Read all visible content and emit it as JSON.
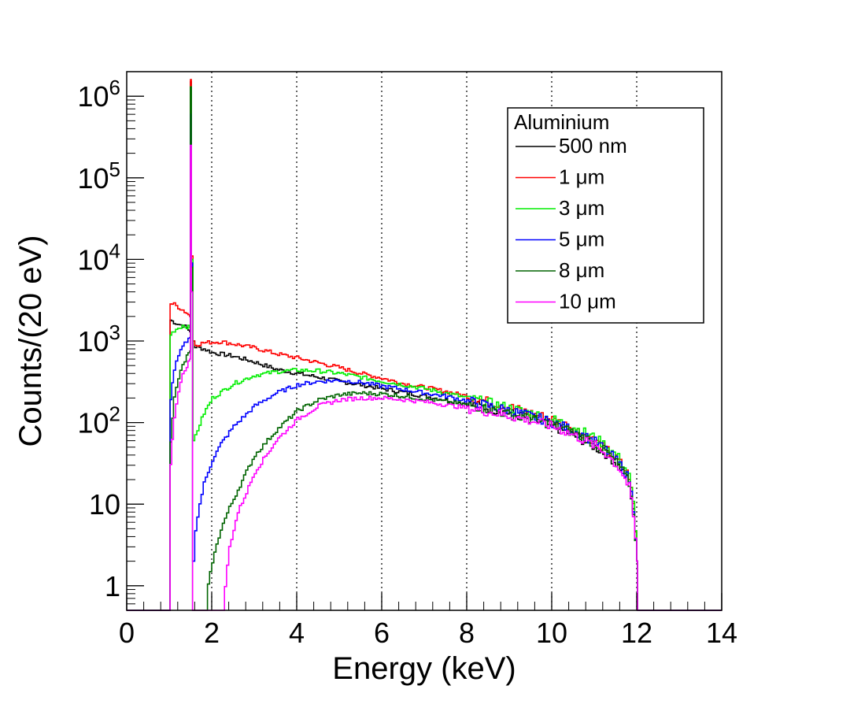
{
  "chart_data": {
    "type": "line",
    "title": "",
    "xlabel": "Energy (keV)",
    "ylabel": "Counts/(20 eV)",
    "yscale": "log",
    "xlim": [
      0,
      14
    ],
    "ylim": [
      0.5,
      2000000
    ],
    "x_ticks": [
      {
        "value": 0,
        "label": "0"
      },
      {
        "value": 2,
        "label": "2"
      },
      {
        "value": 4,
        "label": "4"
      },
      {
        "value": 6,
        "label": "6"
      },
      {
        "value": 8,
        "label": "8"
      },
      {
        "value": 10,
        "label": "10"
      },
      {
        "value": 12,
        "label": "12"
      },
      {
        "value": 14,
        "label": "14"
      }
    ],
    "y_ticks": [
      {
        "value": 1,
        "base": "1",
        "exp": ""
      },
      {
        "value": 10,
        "base": "10",
        "exp": ""
      },
      {
        "value": 100,
        "base": "10",
        "exp": "2"
      },
      {
        "value": 1000,
        "base": "10",
        "exp": "3"
      },
      {
        "value": 10000,
        "base": "10",
        "exp": "4"
      },
      {
        "value": 100000,
        "base": "10",
        "exp": "5"
      },
      {
        "value": 1000000,
        "base": "10",
        "exp": "6"
      }
    ],
    "grid_x": [
      2,
      4,
      6,
      8,
      10,
      12
    ],
    "legend": {
      "title": "Aluminium",
      "placement": "top-right"
    },
    "series": [
      {
        "name": "500 nm",
        "color": "#000000",
        "x": [
          1.0,
          1.02,
          1.1,
          1.2,
          1.3,
          1.4,
          1.48,
          1.5,
          1.52,
          1.56,
          1.6,
          1.8,
          2.0,
          2.5,
          3.0,
          3.5,
          4.0,
          4.5,
          5.0,
          5.5,
          6.0,
          6.5,
          7.0,
          7.5,
          8.0,
          8.5,
          9.0,
          9.5,
          10.0,
          10.5,
          11.0,
          11.3,
          11.6,
          11.8,
          11.9,
          12.0,
          12.02
        ],
        "y": [
          0.5,
          1800,
          1700,
          1600,
          1550,
          1450,
          1300,
          1500000,
          9000,
          1000,
          850,
          800,
          720,
          650,
          550,
          450,
          400,
          360,
          320,
          290,
          260,
          235,
          210,
          190,
          170,
          150,
          130,
          110,
          90,
          70,
          50,
          40,
          28,
          18,
          8,
          2,
          0.5
        ]
      },
      {
        "name": "1 μm",
        "color": "#ff0000",
        "x": [
          1.0,
          1.02,
          1.1,
          1.2,
          1.3,
          1.4,
          1.48,
          1.5,
          1.52,
          1.56,
          1.6,
          1.8,
          2.0,
          2.2,
          2.5,
          3.0,
          3.5,
          4.0,
          4.5,
          5.0,
          5.5,
          6.0,
          6.5,
          7.0,
          7.5,
          8.0,
          8.5,
          9.0,
          9.5,
          10.0,
          10.5,
          11.0,
          11.3,
          11.6,
          11.8,
          11.9,
          12.0,
          12.02
        ],
        "y": [
          0.5,
          2900,
          2800,
          2600,
          2400,
          2200,
          2000,
          1600000,
          11000,
          1000,
          900,
          950,
          970,
          980,
          920,
          820,
          700,
          620,
          540,
          470,
          400,
          350,
          300,
          270,
          240,
          210,
          180,
          155,
          130,
          110,
          85,
          60,
          45,
          32,
          22,
          10,
          2,
          0.5
        ]
      },
      {
        "name": "3 μm",
        "color": "#00ee00",
        "x": [
          1.0,
          1.02,
          1.1,
          1.2,
          1.3,
          1.4,
          1.48,
          1.5,
          1.52,
          1.56,
          1.6,
          1.8,
          2.0,
          2.5,
          3.0,
          3.5,
          4.0,
          4.5,
          5.0,
          5.5,
          6.0,
          6.5,
          7.0,
          7.5,
          8.0,
          8.5,
          9.0,
          9.5,
          10.0,
          10.5,
          11.0,
          11.3,
          11.6,
          11.8,
          11.9,
          12.0,
          12.02
        ],
        "y": [
          0.5,
          1200,
          1350,
          1450,
          1550,
          1500,
          1450,
          1300000,
          10000,
          60,
          70,
          130,
          200,
          300,
          380,
          420,
          440,
          430,
          400,
          360,
          320,
          290,
          260,
          230,
          200,
          175,
          150,
          130,
          110,
          88,
          65,
          50,
          35,
          22,
          10,
          2,
          0.5
        ]
      },
      {
        "name": "5 μm",
        "color": "#0000ff",
        "x": [
          1.0,
          1.02,
          1.1,
          1.2,
          1.3,
          1.4,
          1.48,
          1.5,
          1.52,
          1.55,
          1.6,
          1.7,
          1.8,
          2.0,
          2.2,
          2.5,
          3.0,
          3.5,
          4.0,
          4.5,
          5.0,
          5.5,
          6.0,
          6.5,
          7.0,
          7.5,
          8.0,
          8.5,
          9.0,
          9.5,
          10.0,
          10.5,
          11.0,
          11.3,
          11.6,
          11.8,
          11.9,
          12.0,
          12.02
        ],
        "y": [
          0.5,
          200,
          450,
          650,
          850,
          1000,
          1100,
          600000,
          9000,
          2,
          5,
          10,
          18,
          35,
          55,
          90,
          160,
          230,
          290,
          320,
          330,
          310,
          280,
          255,
          230,
          210,
          185,
          160,
          140,
          120,
          100,
          80,
          58,
          44,
          30,
          20,
          9,
          2,
          0.5
        ]
      },
      {
        "name": "8 μm",
        "color": "#006400",
        "x": [
          1.0,
          1.02,
          1.1,
          1.2,
          1.3,
          1.4,
          1.48,
          1.5,
          1.52,
          1.55,
          1.8,
          1.9,
          2.0,
          2.2,
          2.4,
          2.6,
          2.8,
          3.0,
          3.5,
          4.0,
          4.5,
          5.0,
          5.5,
          6.0,
          6.5,
          7.0,
          7.5,
          8.0,
          8.5,
          9.0,
          9.5,
          10.0,
          10.5,
          11.0,
          11.3,
          11.6,
          11.8,
          11.9,
          12.0,
          12.02
        ],
        "y": [
          0.5,
          60,
          200,
          350,
          500,
          650,
          750,
          1300000,
          8000,
          0.5,
          0.5,
          1,
          2,
          5,
          9,
          15,
          25,
          40,
          80,
          140,
          190,
          220,
          230,
          225,
          210,
          195,
          180,
          165,
          145,
          125,
          110,
          95,
          75,
          55,
          42,
          28,
          18,
          8,
          2,
          0.5
        ]
      },
      {
        "name": "10 μm",
        "color": "#ff00ff",
        "x": [
          1.0,
          1.02,
          1.1,
          1.2,
          1.3,
          1.4,
          1.48,
          1.5,
          1.52,
          1.55,
          2.2,
          2.3,
          2.4,
          2.6,
          2.8,
          3.0,
          3.5,
          4.0,
          4.5,
          5.0,
          5.5,
          6.0,
          6.5,
          7.0,
          7.5,
          8.0,
          8.5,
          9.0,
          9.5,
          10.0,
          10.5,
          11.0,
          11.3,
          11.6,
          11.8,
          11.9,
          12.0,
          12.02
        ],
        "y": [
          0.5,
          30,
          120,
          250,
          380,
          500,
          600,
          250000,
          4000,
          0.5,
          0.5,
          1,
          3,
          8,
          14,
          25,
          60,
          110,
          160,
          190,
          200,
          200,
          190,
          180,
          165,
          150,
          135,
          120,
          105,
          90,
          70,
          52,
          40,
          26,
          16,
          7,
          2,
          0.5
        ]
      }
    ]
  }
}
